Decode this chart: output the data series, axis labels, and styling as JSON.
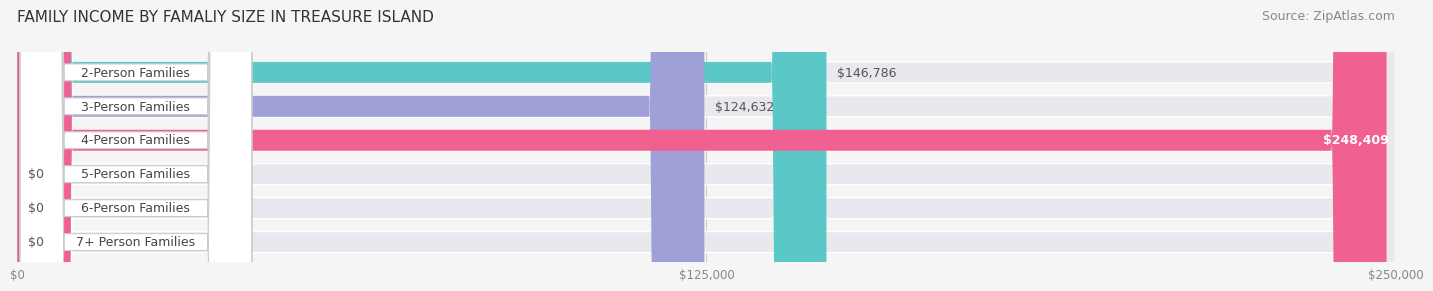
{
  "title": "FAMILY INCOME BY FAMALIY SIZE IN TREASURE ISLAND",
  "source": "Source: ZipAtlas.com",
  "categories": [
    "2-Person Families",
    "3-Person Families",
    "4-Person Families",
    "5-Person Families",
    "6-Person Families",
    "7+ Person Families"
  ],
  "values": [
    146786,
    124632,
    248409,
    0,
    0,
    0
  ],
  "bar_colors": [
    "#5bc8c8",
    "#a0a0d8",
    "#f06090",
    "#f5c896",
    "#f0a0a0",
    "#a0c8f0"
  ],
  "value_labels": [
    "$146,786",
    "$124,632",
    "$248,409",
    "$0",
    "$0",
    "$0"
  ],
  "xlim": [
    0,
    250000
  ],
  "xticks": [
    0,
    125000,
    250000
  ],
  "xticklabels": [
    "$0",
    "$125,000",
    "$250,000"
  ],
  "title_fontsize": 11,
  "source_fontsize": 9,
  "label_fontsize": 9,
  "bar_height": 0.62,
  "background_color": "#f5f5f5",
  "bar_bg_color": "#e8e8ee"
}
